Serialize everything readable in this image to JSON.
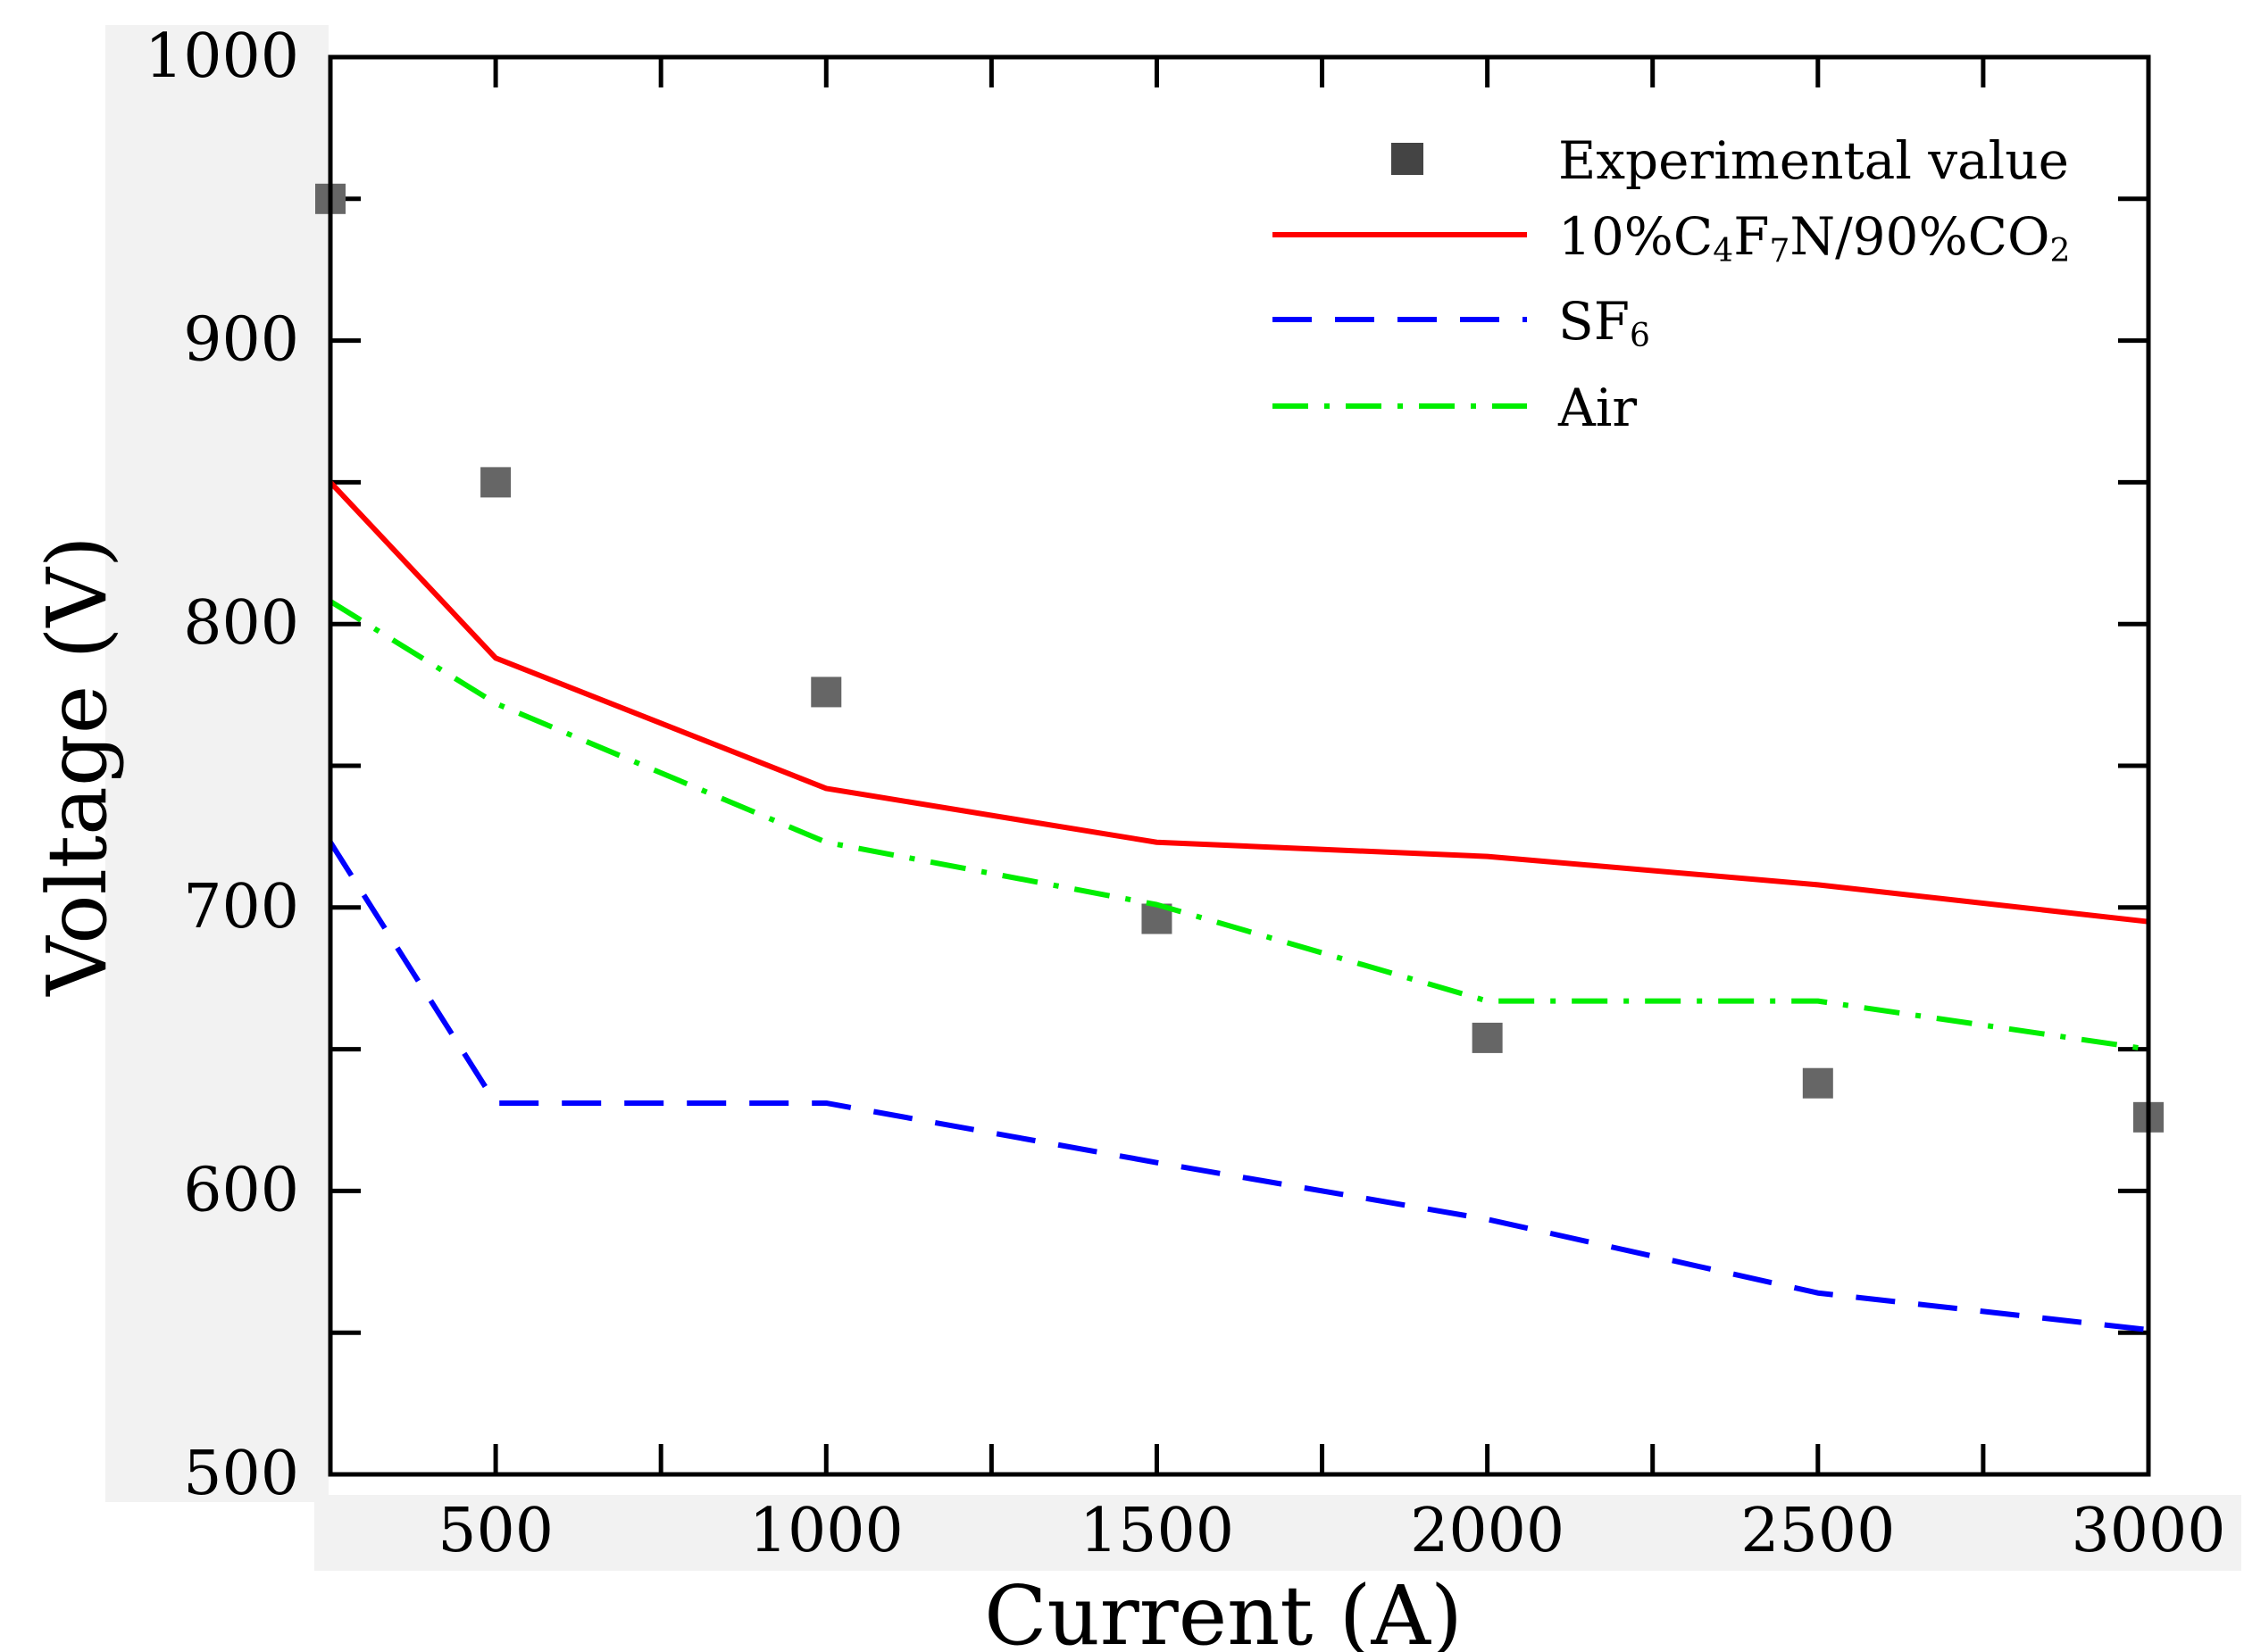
{
  "chart_data": {
    "type": "line",
    "xlabel": "Current (A)",
    "ylabel": "Voltage (V)",
    "xlim": [
      250,
      3000
    ],
    "ylim": [
      500,
      1000
    ],
    "xticks": [
      500,
      1000,
      1500,
      2000,
      2500,
      3000
    ],
    "yticks": [
      500,
      600,
      700,
      800,
      900,
      1000
    ],
    "xtick_labels": [
      "500",
      "1000",
      "1500",
      "2000",
      "2500",
      "3000"
    ],
    "ytick_labels": [
      "500",
      "600",
      "700",
      "800",
      "900",
      "1000"
    ],
    "legend_position": "top-right",
    "series": [
      {
        "name": "Experimental value",
        "style": "scatter",
        "color": "#666666",
        "x": [
          250,
          500,
          1000,
          1500,
          2000,
          2500,
          3000
        ],
        "values": [
          950,
          850,
          776,
          696,
          654,
          638,
          626
        ]
      },
      {
        "name": "10%C4F7N/90%CO2",
        "label_parts": [
          "10%C",
          "4",
          "F",
          "7",
          "N/90%CO",
          "2"
        ],
        "style": "solid",
        "color": "#ff0000",
        "x": [
          250,
          500,
          1000,
          1500,
          2000,
          2500,
          3000
        ],
        "values": [
          850,
          788,
          742,
          723,
          718,
          708,
          695
        ]
      },
      {
        "name": "SF6",
        "label_parts": [
          "SF",
          "6"
        ],
        "style": "dashed",
        "color": "#0000ff",
        "x": [
          250,
          500,
          1000,
          1500,
          2000,
          2500,
          3000
        ],
        "values": [
          723,
          631,
          631,
          610,
          590,
          564,
          551
        ]
      },
      {
        "name": "Air",
        "label_parts": [
          "Air"
        ],
        "style": "dashdot",
        "color": "#00ee00",
        "x": [
          250,
          500,
          1000,
          1500,
          2000,
          2500,
          3000
        ],
        "values": [
          808,
          772,
          723,
          701,
          667,
          667,
          650
        ]
      }
    ]
  }
}
